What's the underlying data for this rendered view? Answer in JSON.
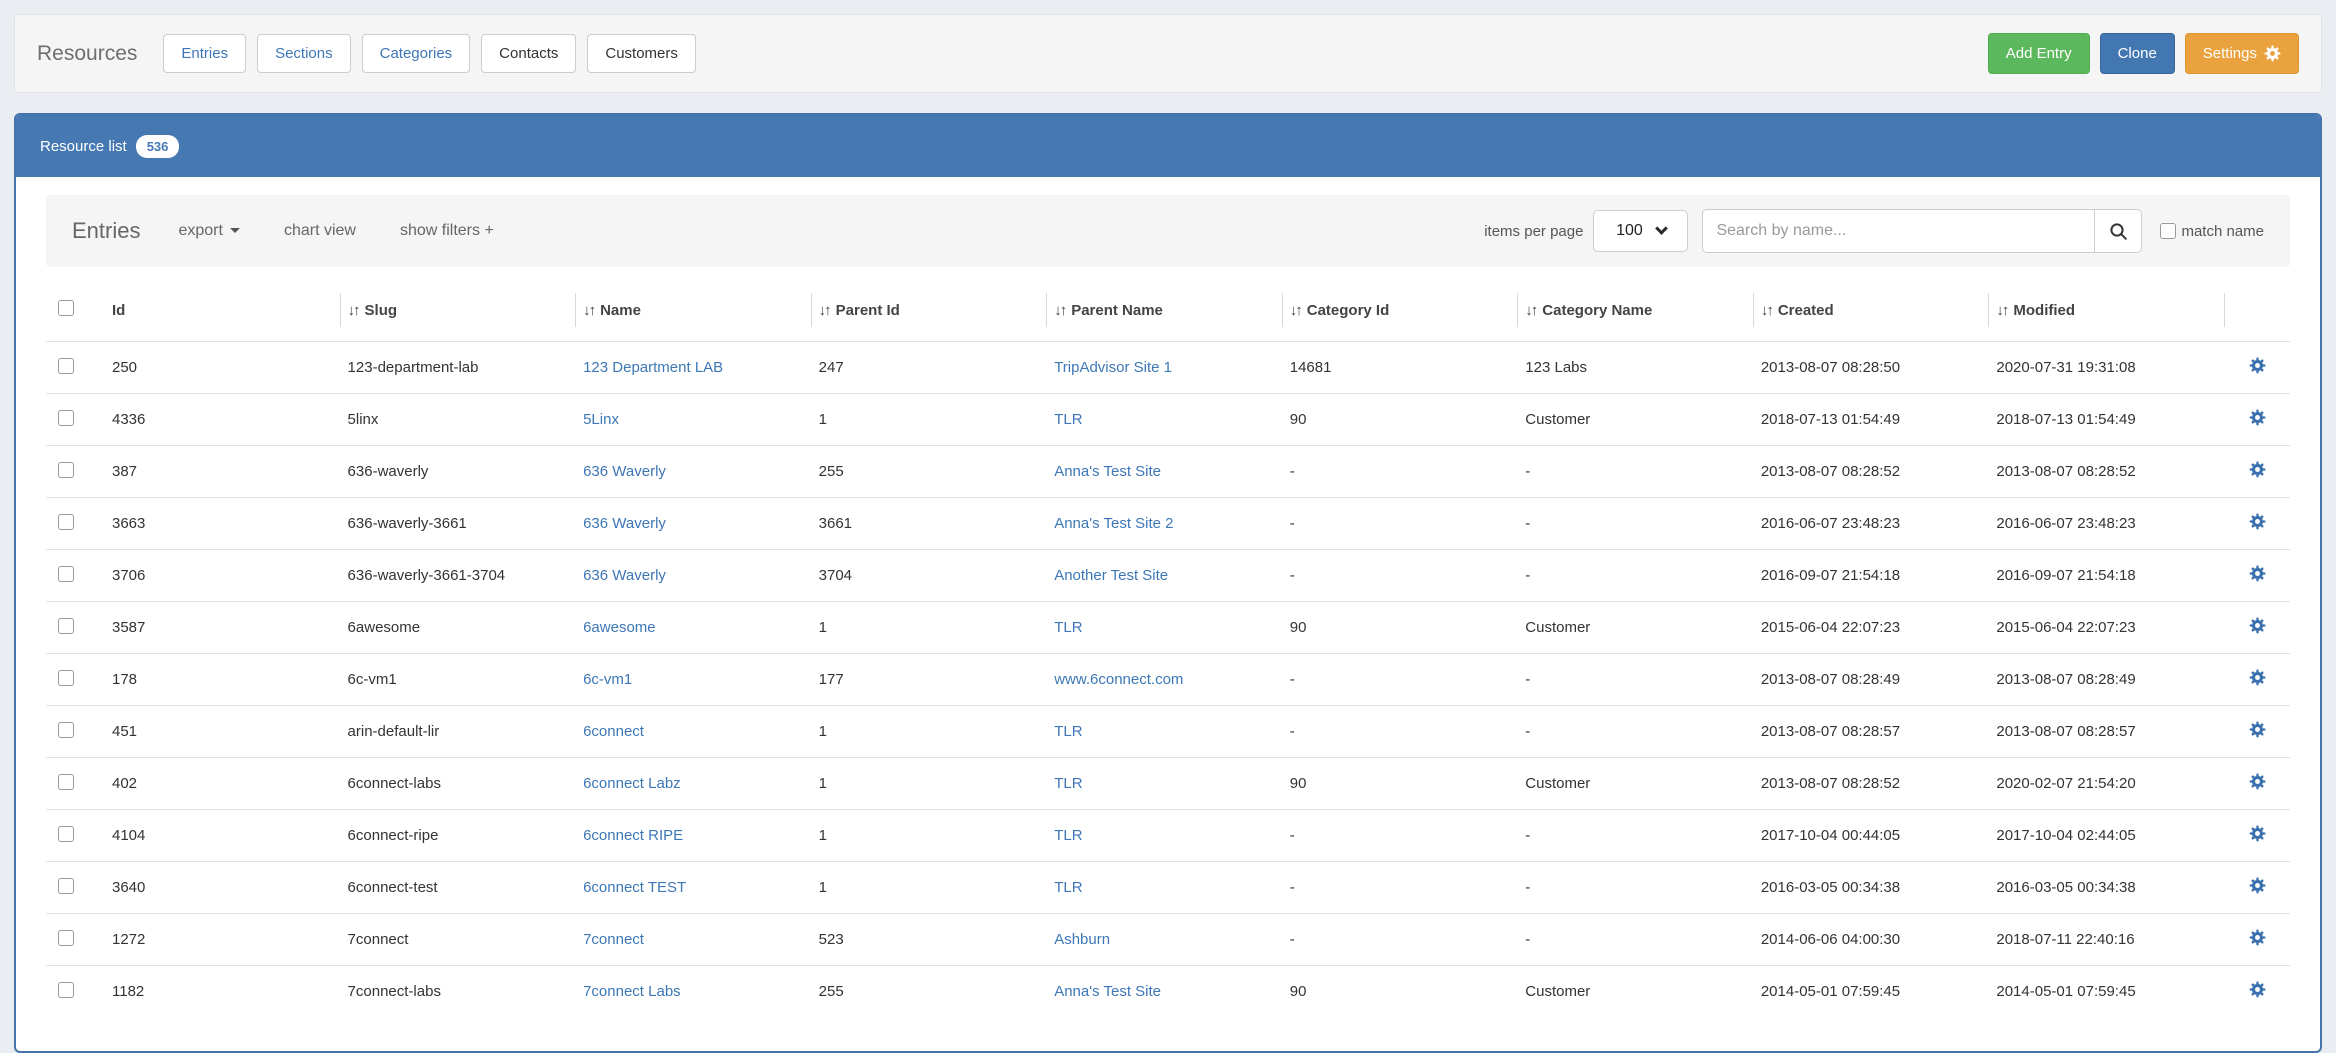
{
  "colors": {
    "accent_blue": "#4679b2",
    "link_blue": "#3d77b6",
    "button_green": "#5cb85c",
    "button_blue": "#4377b1",
    "button_orange": "#e9a23d",
    "gear_blue": "#3a70ae"
  },
  "icons": {
    "sort": "↓↑",
    "caret_down": "caret-down",
    "search": "magnifier",
    "gear": "gear"
  },
  "header": {
    "title": "Resources",
    "tabs": [
      {
        "label": "Entries"
      },
      {
        "label": "Sections"
      },
      {
        "label": "Categories"
      },
      {
        "label": "Contacts"
      },
      {
        "label": "Customers"
      }
    ],
    "actions": {
      "add_entry": "Add Entry",
      "clone": "Clone",
      "settings": "Settings"
    }
  },
  "panel": {
    "title": "Resource list",
    "count": "536",
    "toolbar": {
      "title": "Entries",
      "export_label": "export",
      "chart_view_label": "chart view",
      "show_filters_label": "show filters +",
      "items_per_page_label": "items per page",
      "items_per_page_value": "100",
      "search_placeholder": "Search by name...",
      "match_name_label": "match name"
    },
    "table": {
      "columns": [
        {
          "key": "id",
          "label": "Id",
          "sortable": false,
          "link": false
        },
        {
          "key": "slug",
          "label": "Slug",
          "sortable": true,
          "link": false
        },
        {
          "key": "name",
          "label": "Name",
          "sortable": true,
          "link": true
        },
        {
          "key": "parent_id",
          "label": "Parent Id",
          "sortable": true,
          "link": false
        },
        {
          "key": "parent_name",
          "label": "Parent Name",
          "sortable": true,
          "link": true
        },
        {
          "key": "category_id",
          "label": "Category Id",
          "sortable": true,
          "link": false
        },
        {
          "key": "category_name",
          "label": "Category Name",
          "sortable": true,
          "link": false
        },
        {
          "key": "created",
          "label": "Created",
          "sortable": true,
          "link": false
        },
        {
          "key": "modified",
          "label": "Modified",
          "sortable": true,
          "link": false
        }
      ],
      "rows": [
        {
          "id": "250",
          "slug": "123-department-lab",
          "name": "123 Department LAB",
          "parent_id": "247",
          "parent_name": "TripAdvisor Site 1",
          "category_id": "14681",
          "category_name": "123 Labs",
          "created": "2013-08-07 08:28:50",
          "modified": "2020-07-31 19:31:08"
        },
        {
          "id": "4336",
          "slug": "5linx",
          "name": "5Linx",
          "parent_id": "1",
          "parent_name": "TLR",
          "category_id": "90",
          "category_name": "Customer",
          "created": "2018-07-13 01:54:49",
          "modified": "2018-07-13 01:54:49"
        },
        {
          "id": "387",
          "slug": "636-waverly",
          "name": "636 Waverly",
          "parent_id": "255",
          "parent_name": "Anna's Test Site",
          "category_id": "-",
          "category_name": "-",
          "created": "2013-08-07 08:28:52",
          "modified": "2013-08-07 08:28:52"
        },
        {
          "id": "3663",
          "slug": "636-waverly-3661",
          "name": "636 Waverly",
          "parent_id": "3661",
          "parent_name": "Anna's Test Site 2",
          "category_id": "-",
          "category_name": "-",
          "created": "2016-06-07 23:48:23",
          "modified": "2016-06-07 23:48:23"
        },
        {
          "id": "3706",
          "slug": "636-waverly-3661-3704",
          "name": "636 Waverly",
          "parent_id": "3704",
          "parent_name": "Another Test Site",
          "category_id": "-",
          "category_name": "-",
          "created": "2016-09-07 21:54:18",
          "modified": "2016-09-07 21:54:18"
        },
        {
          "id": "3587",
          "slug": "6awesome",
          "name": "6awesome",
          "parent_id": "1",
          "parent_name": "TLR",
          "category_id": "90",
          "category_name": "Customer",
          "created": "2015-06-04 22:07:23",
          "modified": "2015-06-04 22:07:23"
        },
        {
          "id": "178",
          "slug": "6c-vm1",
          "name": "6c-vm1",
          "parent_id": "177",
          "parent_name": "www.6connect.com",
          "category_id": "-",
          "category_name": "-",
          "created": "2013-08-07 08:28:49",
          "modified": "2013-08-07 08:28:49"
        },
        {
          "id": "451",
          "slug": "arin-default-lir",
          "name": "6connect",
          "parent_id": "1",
          "parent_name": "TLR",
          "category_id": "-",
          "category_name": "-",
          "created": "2013-08-07 08:28:57",
          "modified": "2013-08-07 08:28:57"
        },
        {
          "id": "402",
          "slug": "6connect-labs",
          "name": "6connect Labz",
          "parent_id": "1",
          "parent_name": "TLR",
          "category_id": "90",
          "category_name": "Customer",
          "created": "2013-08-07 08:28:52",
          "modified": "2020-02-07 21:54:20"
        },
        {
          "id": "4104",
          "slug": "6connect-ripe",
          "name": "6connect RIPE",
          "parent_id": "1",
          "parent_name": "TLR",
          "category_id": "-",
          "category_name": "-",
          "created": "2017-10-04 00:44:05",
          "modified": "2017-10-04 02:44:05"
        },
        {
          "id": "3640",
          "slug": "6connect-test",
          "name": "6connect TEST",
          "parent_id": "1",
          "parent_name": "TLR",
          "category_id": "-",
          "category_name": "-",
          "created": "2016-03-05 00:34:38",
          "modified": "2016-03-05 00:34:38"
        },
        {
          "id": "1272",
          "slug": "7connect",
          "name": "7connect",
          "parent_id": "523",
          "parent_name": "Ashburn",
          "category_id": "-",
          "category_name": "-",
          "created": "2014-06-06 04:00:30",
          "modified": "2018-07-11 22:40:16"
        },
        {
          "id": "1182",
          "slug": "7connect-labs",
          "name": "7connect Labs",
          "parent_id": "255",
          "parent_name": "Anna's Test Site",
          "category_id": "90",
          "category_name": "Customer",
          "created": "2014-05-01 07:59:45",
          "modified": "2014-05-01 07:59:45"
        }
      ]
    }
  }
}
